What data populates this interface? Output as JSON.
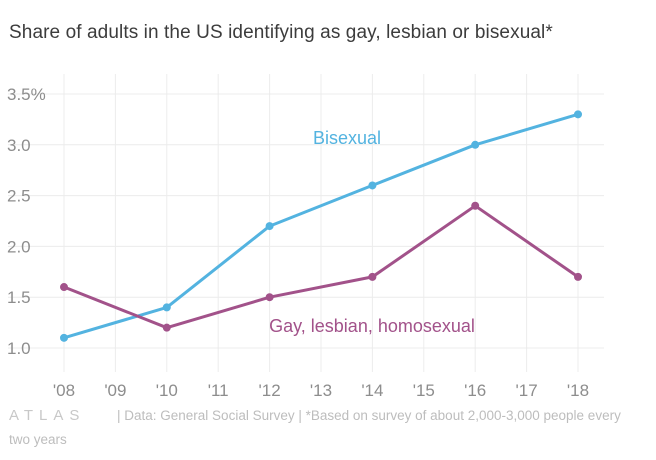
{
  "title": "Share of adults in the US identifying as gay, lesbian or bisexual*",
  "footer": {
    "logo": "ATLAS",
    "source": "| Data: General Social Survey | *Based on survey of about 2,000-3,000 people every two years"
  },
  "colors": {
    "bisexual": "#53b3e0",
    "gay": "#a2528a",
    "grid": "#ececec",
    "tick": "#8d8d8d"
  },
  "chart_data": {
    "type": "line",
    "title": "Share of adults in the US identifying as gay, lesbian or bisexual*",
    "x": [
      2008,
      2010,
      2012,
      2014,
      2016,
      2018
    ],
    "x_ticks": [
      {
        "v": 2008,
        "label": "'08"
      },
      {
        "v": 2009,
        "label": "'09"
      },
      {
        "v": 2010,
        "label": "'10"
      },
      {
        "v": 2011,
        "label": "'11"
      },
      {
        "v": 2012,
        "label": "'12"
      },
      {
        "v": 2013,
        "label": "'13"
      },
      {
        "v": 2014,
        "label": "'14"
      },
      {
        "v": 2015,
        "label": "'15"
      },
      {
        "v": 2016,
        "label": "'16"
      },
      {
        "v": 2017,
        "label": "'17"
      },
      {
        "v": 2018,
        "label": "'18"
      }
    ],
    "y_ticks": [
      {
        "v": 1.0,
        "label": "1.0"
      },
      {
        "v": 1.5,
        "label": "1.5"
      },
      {
        "v": 2.0,
        "label": "2.0"
      },
      {
        "v": 2.5,
        "label": "2.5"
      },
      {
        "v": 3.0,
        "label": "3.0"
      },
      {
        "v": 3.5,
        "label": "3.5%"
      }
    ],
    "xlim": [
      2008,
      2018
    ],
    "ylim": [
      1.0,
      3.5
    ],
    "grid": true,
    "series": [
      {
        "name": "Bisexual",
        "color": "#53b3e0",
        "values": [
          1.1,
          1.4,
          2.2,
          2.6,
          3.0,
          3.3
        ]
      },
      {
        "name": "Gay, lesbian, homosexual",
        "color": "#a2528a",
        "values": [
          1.6,
          1.2,
          1.5,
          1.7,
          2.4,
          1.7
        ]
      }
    ]
  }
}
